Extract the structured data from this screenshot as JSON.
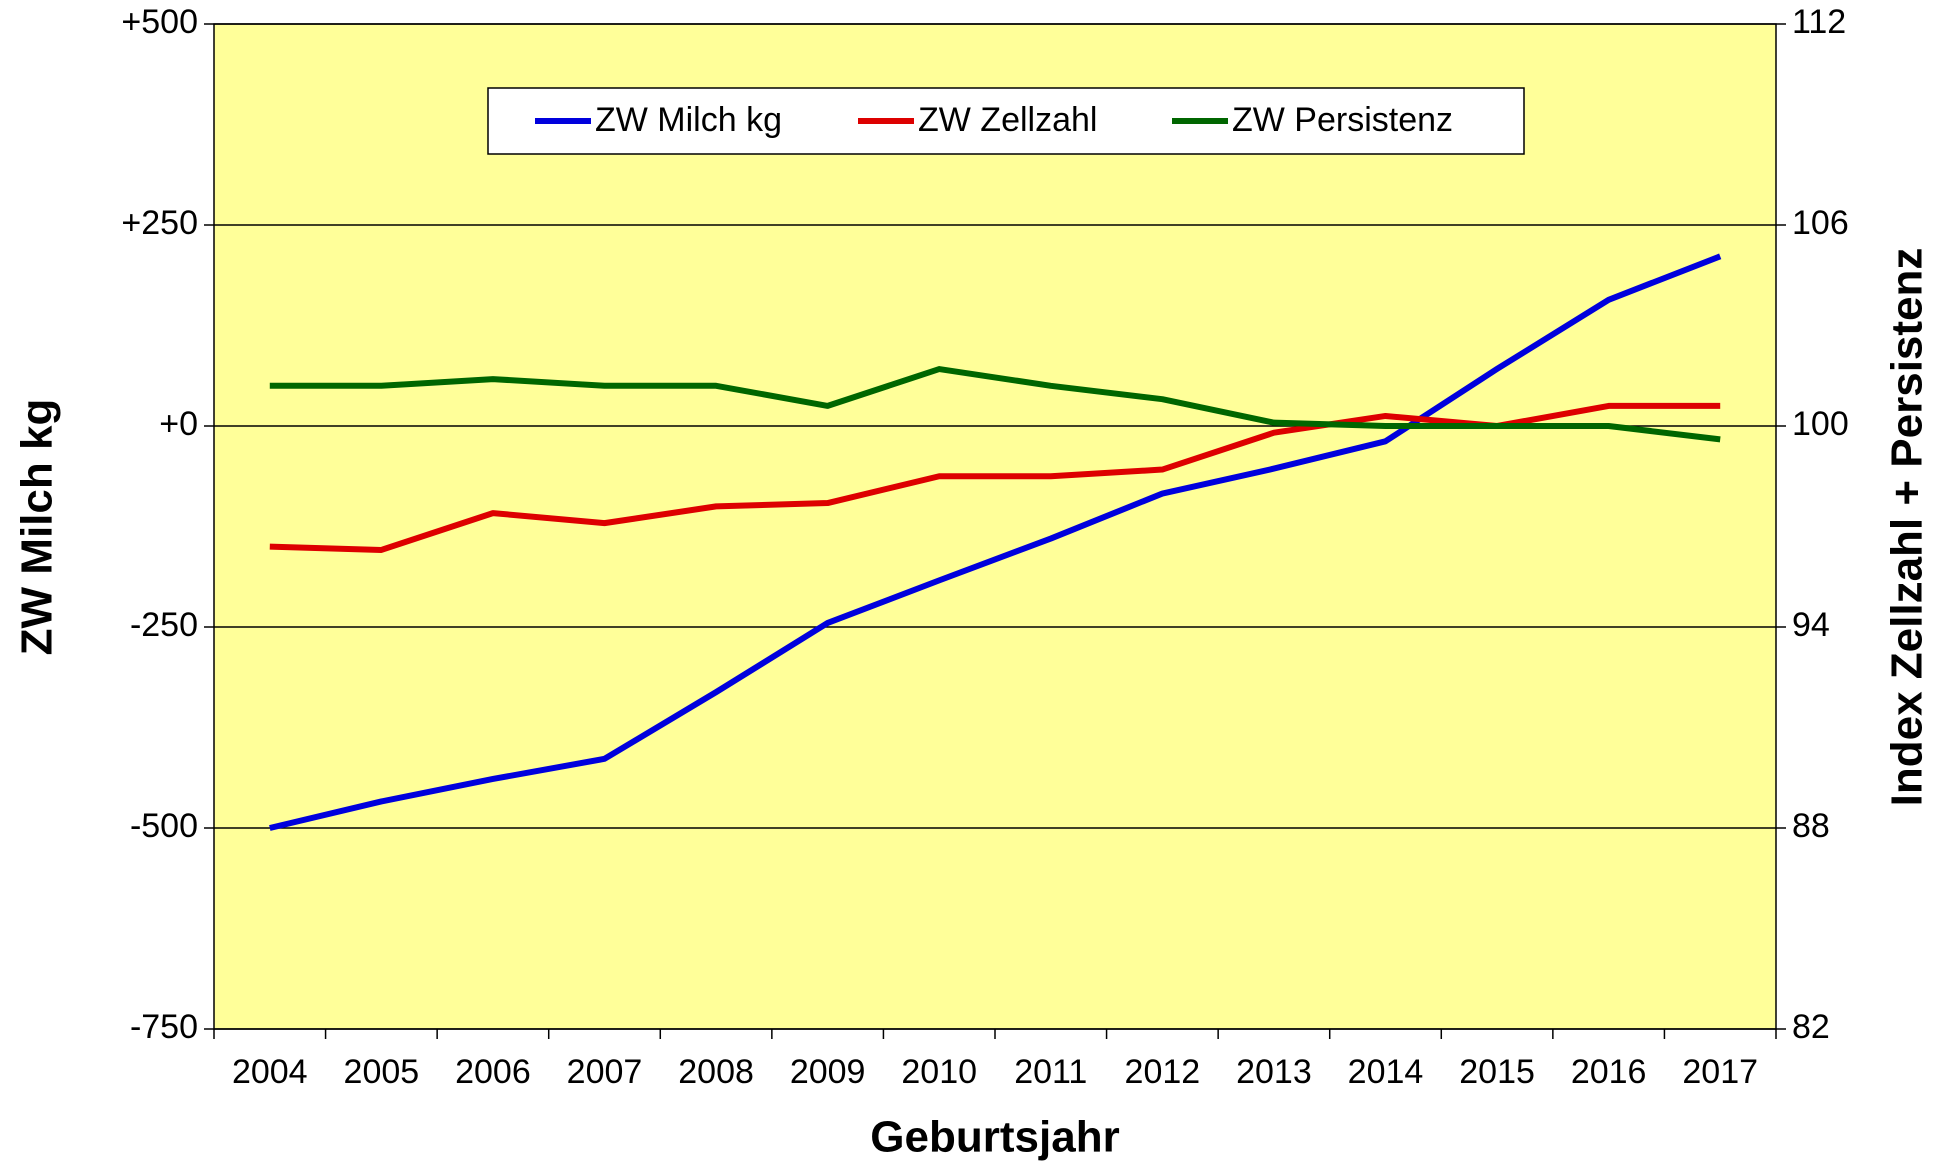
{
  "chart_data": {
    "type": "line",
    "x_label": "Geburtsjahr",
    "y_label": "ZW Milch kg",
    "y2_label": "Index Zellzahl + Persistenz",
    "categories": [
      "2004",
      "2005",
      "2006",
      "2007",
      "2008",
      "2009",
      "2010",
      "2011",
      "2012",
      "2013",
      "2014",
      "2015",
      "2016",
      "2017"
    ],
    "ylim": [
      -750,
      500
    ],
    "yticks": [
      -750,
      -500,
      -250,
      {
        "value": 0,
        "label": "+0"
      },
      {
        "value": 250,
        "label": "+250"
      },
      {
        "value": 500,
        "label": "+500"
      }
    ],
    "y2lim": [
      82,
      112
    ],
    "y2ticks": [
      82,
      88,
      94,
      100,
      106,
      112
    ],
    "grid": true,
    "background": "#ffff99",
    "series": [
      {
        "name": "ZW Milch kg",
        "color": "#0000dd",
        "values": [
          -500,
          -467,
          -439,
          -414,
          -331,
          -245,
          -192,
          -140,
          -84,
          -53,
          -19,
          71,
          157,
          211
        ]
      },
      {
        "name": "ZW Zellzahl",
        "color": "#dd0000",
        "axis": "y2",
        "values": [
          96.4,
          96.3,
          97.4,
          97.1,
          97.6,
          97.7,
          98.5,
          98.5,
          98.7,
          99.8,
          100.3,
          100,
          100.6,
          100.6
        ]
      },
      {
        "name": "ZW Persistenz",
        "color": "#006600",
        "axis": "y2",
        "values": [
          101.2,
          101.2,
          101.4,
          101.2,
          101.2,
          100.6,
          101.7,
          101.2,
          100.8,
          100.1,
          100,
          100,
          100,
          99.6
        ]
      }
    ]
  }
}
